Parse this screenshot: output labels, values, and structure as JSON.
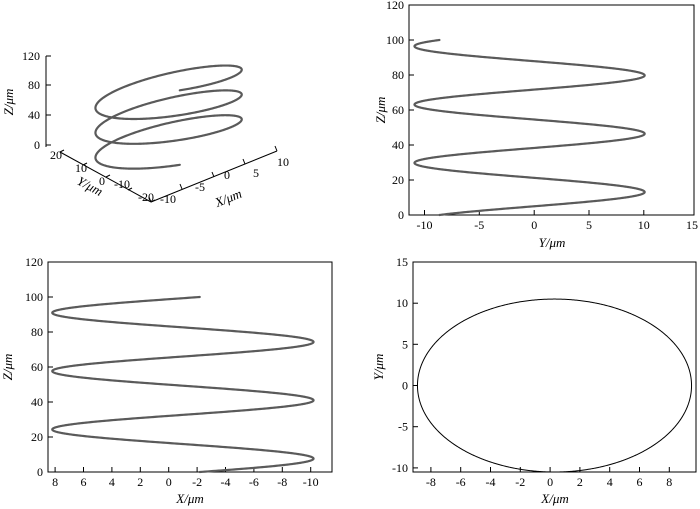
{
  "chart_data": [
    {
      "type": "line",
      "subtype": "3d-helix",
      "xlabel": "X/μm",
      "ylabel": "Y/μm",
      "zlabel": "Z/μm",
      "x_ticks": [
        "-10",
        "-5",
        "0",
        "5",
        "10"
      ],
      "y_ticks": [
        "20",
        "10",
        "0",
        "-10",
        "-20"
      ],
      "z_ticks": [
        "0",
        "40",
        "80",
        "120"
      ],
      "xlim": [
        -10,
        10
      ],
      "ylim": [
        -20,
        20
      ],
      "zlim": [
        0,
        120
      ],
      "helix": {
        "x_amplitude": 9.2,
        "y_amplitude": 10.5,
        "turns": 3,
        "z_range": [
          0,
          100
        ]
      }
    },
    {
      "type": "line",
      "view": "Y-Z projection",
      "xlabel": "Y/μm",
      "ylabel": "Z/μm",
      "x_ticks": [
        "-10",
        "-5",
        "0",
        "5",
        "10",
        "15"
      ],
      "y_ticks": [
        "0",
        "20",
        "40",
        "60",
        "80",
        "100",
        "120"
      ],
      "xlim": [
        -11,
        15
      ],
      "ylim": [
        0,
        120
      ],
      "helix": {
        "amplitude": 10.5,
        "turns": 3,
        "z_range": [
          0,
          100
        ]
      }
    },
    {
      "type": "line",
      "view": "X-Z projection",
      "xlabel": "X/μm",
      "ylabel": "Z/μm",
      "x_ticks": [
        "8",
        "6",
        "4",
        "2",
        "0",
        "-2",
        "-4",
        "-6",
        "-8",
        "-10"
      ],
      "y_ticks": [
        "0",
        "20",
        "40",
        "60",
        "80",
        "100",
        "120"
      ],
      "xlim": [
        9.5,
        -10.5
      ],
      "ylim": [
        0,
        120
      ],
      "helix": {
        "amplitude": 9.2,
        "turns": 3,
        "z_range": [
          0,
          100
        ]
      }
    },
    {
      "type": "line",
      "view": "X-Y projection",
      "xlabel": "X/μm",
      "ylabel": "Y/μm",
      "x_ticks": [
        "-8",
        "-6",
        "-4",
        "-2",
        "0",
        "2",
        "4",
        "6",
        "8"
      ],
      "y_ticks": [
        "-10",
        "-5",
        "0",
        "5",
        "10",
        "15"
      ],
      "xlim": [
        -9.5,
        9.5
      ],
      "ylim": [
        -10.5,
        15
      ],
      "ellipse": {
        "center": [
          0,
          0
        ],
        "x_radius": 9.2,
        "y_radius": 10.5
      }
    }
  ]
}
